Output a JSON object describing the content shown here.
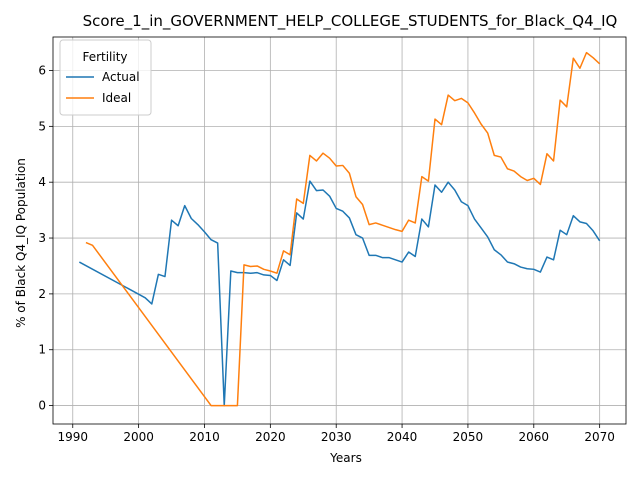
{
  "chart_data": {
    "type": "line",
    "title": "Score_1_in_GOVERNMENT_HELP_COLLEGE_STUDENTS_for_Black_Q4_IQ",
    "xlabel": "Years",
    "ylabel": "% of Black Q4_IQ Population",
    "xlim": [
      1987,
      2074
    ],
    "ylim": [
      -0.33,
      6.6
    ],
    "xticks": [
      1990,
      2000,
      2010,
      2020,
      2030,
      2040,
      2050,
      2060,
      2070
    ],
    "yticks": [
      0,
      1,
      2,
      3,
      4,
      5,
      6
    ],
    "grid": true,
    "legend": {
      "title": "Fertility",
      "position": "top-left"
    },
    "series": [
      {
        "name": "Actual",
        "color": "#1f77b4",
        "points": [
          [
            1991,
            2.57
          ],
          [
            2001,
            1.93
          ],
          [
            2002,
            1.82
          ],
          [
            2003,
            2.35
          ],
          [
            2004,
            2.31
          ],
          [
            2005,
            3.32
          ],
          [
            2006,
            3.22
          ],
          [
            2007,
            3.58
          ],
          [
            2008,
            3.35
          ],
          [
            2009,
            3.24
          ],
          [
            2010,
            3.11
          ],
          [
            2011,
            2.97
          ],
          [
            2012,
            2.91
          ],
          [
            2013,
            0.0
          ],
          [
            2014,
            2.41
          ],
          [
            2015,
            2.38
          ],
          [
            2016,
            2.38
          ],
          [
            2017,
            2.37
          ],
          [
            2018,
            2.38
          ],
          [
            2019,
            2.34
          ],
          [
            2020,
            2.33
          ],
          [
            2021,
            2.24
          ],
          [
            2022,
            2.61
          ],
          [
            2023,
            2.51
          ],
          [
            2024,
            3.45
          ],
          [
            2025,
            3.34
          ],
          [
            2026,
            4.02
          ],
          [
            2027,
            3.85
          ],
          [
            2028,
            3.86
          ],
          [
            2029,
            3.75
          ],
          [
            2030,
            3.53
          ],
          [
            2031,
            3.48
          ],
          [
            2032,
            3.36
          ],
          [
            2033,
            3.06
          ],
          [
            2034,
            3.0
          ],
          [
            2035,
            2.69
          ],
          [
            2036,
            2.69
          ],
          [
            2037,
            2.65
          ],
          [
            2038,
            2.65
          ],
          [
            2039,
            2.61
          ],
          [
            2040,
            2.57
          ],
          [
            2041,
            2.75
          ],
          [
            2042,
            2.67
          ],
          [
            2043,
            3.34
          ],
          [
            2044,
            3.2
          ],
          [
            2045,
            3.95
          ],
          [
            2046,
            3.82
          ],
          [
            2047,
            4.0
          ],
          [
            2048,
            3.86
          ],
          [
            2049,
            3.65
          ],
          [
            2050,
            3.58
          ],
          [
            2051,
            3.34
          ],
          [
            2052,
            3.18
          ],
          [
            2053,
            3.02
          ],
          [
            2054,
            2.79
          ],
          [
            2055,
            2.7
          ],
          [
            2056,
            2.57
          ],
          [
            2057,
            2.54
          ],
          [
            2058,
            2.48
          ],
          [
            2059,
            2.45
          ],
          [
            2060,
            2.44
          ],
          [
            2061,
            2.39
          ],
          [
            2062,
            2.66
          ],
          [
            2063,
            2.61
          ],
          [
            2064,
            3.14
          ],
          [
            2065,
            3.06
          ],
          [
            2066,
            3.4
          ],
          [
            2067,
            3.29
          ],
          [
            2068,
            3.26
          ],
          [
            2069,
            3.13
          ],
          [
            2070,
            2.95
          ]
        ]
      },
      {
        "name": "Ideal",
        "color": "#ff7f0e",
        "points": [
          [
            1992,
            2.92
          ],
          [
            1993,
            2.87
          ],
          [
            2011,
            0.0
          ],
          [
            2015,
            0.0
          ],
          [
            2016,
            2.52
          ],
          [
            2017,
            2.49
          ],
          [
            2018,
            2.5
          ],
          [
            2019,
            2.44
          ],
          [
            2020,
            2.41
          ],
          [
            2021,
            2.37
          ],
          [
            2022,
            2.77
          ],
          [
            2023,
            2.7
          ],
          [
            2024,
            3.7
          ],
          [
            2025,
            3.62
          ],
          [
            2026,
            4.48
          ],
          [
            2027,
            4.38
          ],
          [
            2028,
            4.52
          ],
          [
            2029,
            4.43
          ],
          [
            2030,
            4.29
          ],
          [
            2031,
            4.3
          ],
          [
            2032,
            4.16
          ],
          [
            2033,
            3.74
          ],
          [
            2034,
            3.6
          ],
          [
            2035,
            3.24
          ],
          [
            2036,
            3.27
          ],
          [
            2037,
            3.23
          ],
          [
            2038,
            3.19
          ],
          [
            2039,
            3.15
          ],
          [
            2040,
            3.12
          ],
          [
            2041,
            3.32
          ],
          [
            2042,
            3.27
          ],
          [
            2043,
            4.1
          ],
          [
            2044,
            4.02
          ],
          [
            2045,
            5.13
          ],
          [
            2046,
            5.03
          ],
          [
            2047,
            5.56
          ],
          [
            2048,
            5.46
          ],
          [
            2049,
            5.5
          ],
          [
            2050,
            5.42
          ],
          [
            2051,
            5.24
          ],
          [
            2052,
            5.04
          ],
          [
            2053,
            4.88
          ],
          [
            2054,
            4.48
          ],
          [
            2055,
            4.45
          ],
          [
            2056,
            4.24
          ],
          [
            2057,
            4.2
          ],
          [
            2058,
            4.1
          ],
          [
            2059,
            4.03
          ],
          [
            2060,
            4.07
          ],
          [
            2061,
            3.96
          ],
          [
            2062,
            4.51
          ],
          [
            2063,
            4.38
          ],
          [
            2064,
            5.47
          ],
          [
            2065,
            5.35
          ],
          [
            2066,
            6.22
          ],
          [
            2067,
            6.04
          ],
          [
            2068,
            6.32
          ],
          [
            2069,
            6.23
          ],
          [
            2070,
            6.12
          ]
        ]
      }
    ]
  }
}
